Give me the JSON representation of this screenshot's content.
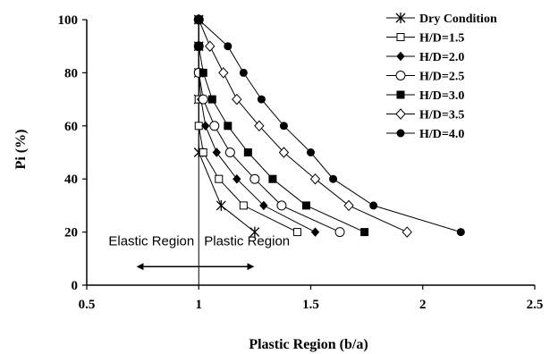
{
  "chart_data": {
    "type": "line",
    "title": "",
    "xlabel": "Plastic Region (b/a)",
    "ylabel": "Pi (%)",
    "xlim": [
      0.5,
      2.5
    ],
    "ylim": [
      0,
      100
    ],
    "xticks": [
      "0.5",
      "1",
      "1.5",
      "2",
      "2.5"
    ],
    "yticks": [
      "0",
      "20",
      "40",
      "60",
      "80",
      "100"
    ],
    "grid": false,
    "legend_position": "top-right",
    "series": [
      {
        "name": "Dry Condition",
        "marker": "asterisk",
        "x": [
          1.0,
          1.0,
          1.0,
          1.0,
          1.0,
          1.1,
          1.25
        ],
        "y": [
          100,
          90,
          80,
          70,
          50,
          30,
          20
        ]
      },
      {
        "name": "H/D=1.5",
        "marker": "square-open",
        "x": [
          1.0,
          1.0,
          1.0,
          1.0,
          1.0,
          1.02,
          1.09,
          1.2,
          1.44
        ],
        "y": [
          100,
          90,
          80,
          70,
          60,
          50,
          40,
          30,
          20
        ]
      },
      {
        "name": "H/D=2.0",
        "marker": "diamond-filled",
        "x": [
          1.0,
          1.0,
          1.0,
          1.01,
          1.03,
          1.08,
          1.17,
          1.29,
          1.52
        ],
        "y": [
          100,
          90,
          80,
          70,
          60,
          50,
          40,
          30,
          20
        ]
      },
      {
        "name": "H/D=2.5",
        "marker": "circle-open",
        "x": [
          1.0,
          1.0,
          1.0,
          1.02,
          1.07,
          1.14,
          1.25,
          1.37,
          1.63
        ],
        "y": [
          100,
          90,
          80,
          70,
          60,
          50,
          40,
          30,
          20
        ]
      },
      {
        "name": "H/D=3.0",
        "marker": "square-filled",
        "x": [
          1.0,
          1.0,
          1.02,
          1.06,
          1.13,
          1.22,
          1.33,
          1.48,
          1.74
        ],
        "y": [
          100,
          90,
          80,
          70,
          60,
          50,
          40,
          30,
          20
        ]
      },
      {
        "name": "H/D=3.5",
        "marker": "diamond-open",
        "x": [
          1.0,
          1.05,
          1.11,
          1.17,
          1.27,
          1.38,
          1.52,
          1.67,
          1.93
        ],
        "y": [
          100,
          90,
          80,
          70,
          60,
          50,
          40,
          30,
          20
        ]
      },
      {
        "name": "H/D=4.0",
        "marker": "circle-filled",
        "x": [
          1.0,
          1.13,
          1.2,
          1.28,
          1.38,
          1.5,
          1.6,
          1.78,
          2.17
        ],
        "y": [
          100,
          90,
          80,
          70,
          60,
          50,
          40,
          30,
          20
        ]
      }
    ],
    "annotations": {
      "divider_x": 1.0,
      "elastic_label": "Elastic Region",
      "plastic_label": "Plastic Region",
      "arrow_y": 7,
      "arrow_from_x": 0.73,
      "arrow_to_x": 1.24
    }
  }
}
